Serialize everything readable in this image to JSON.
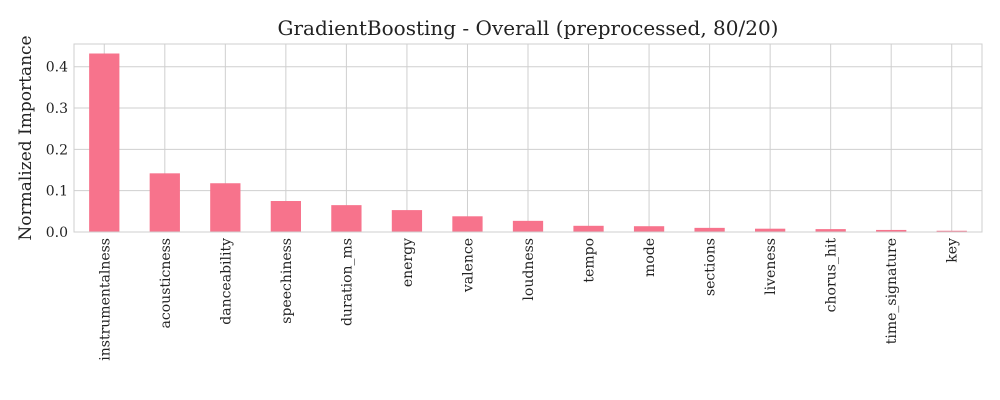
{
  "chart_data": {
    "type": "bar",
    "title": "GradientBoosting - Overall (preprocessed, 80/20)",
    "xlabel": "",
    "ylabel": "Normalized Importance",
    "categories": [
      "instrumentalness",
      "acousticness",
      "danceability",
      "speechiness",
      "duration_ms",
      "energy",
      "valence",
      "loudness",
      "tempo",
      "mode",
      "sections",
      "liveness",
      "chorus_hit",
      "time_signature",
      "key"
    ],
    "values": [
      0.432,
      0.142,
      0.118,
      0.075,
      0.065,
      0.053,
      0.038,
      0.027,
      0.015,
      0.014,
      0.01,
      0.008,
      0.007,
      0.005,
      0.003
    ],
    "ylim": [
      0,
      0.455
    ],
    "yticks": [
      0.0,
      0.1,
      0.2,
      0.3,
      0.4
    ],
    "ytick_labels": [
      "0.0",
      "0.1",
      "0.2",
      "0.3",
      "0.4"
    ],
    "grid": true,
    "legend": "none",
    "colors": {
      "bar": "#f7738c",
      "grid": "#cfcfcf",
      "text": "#222222"
    }
  }
}
